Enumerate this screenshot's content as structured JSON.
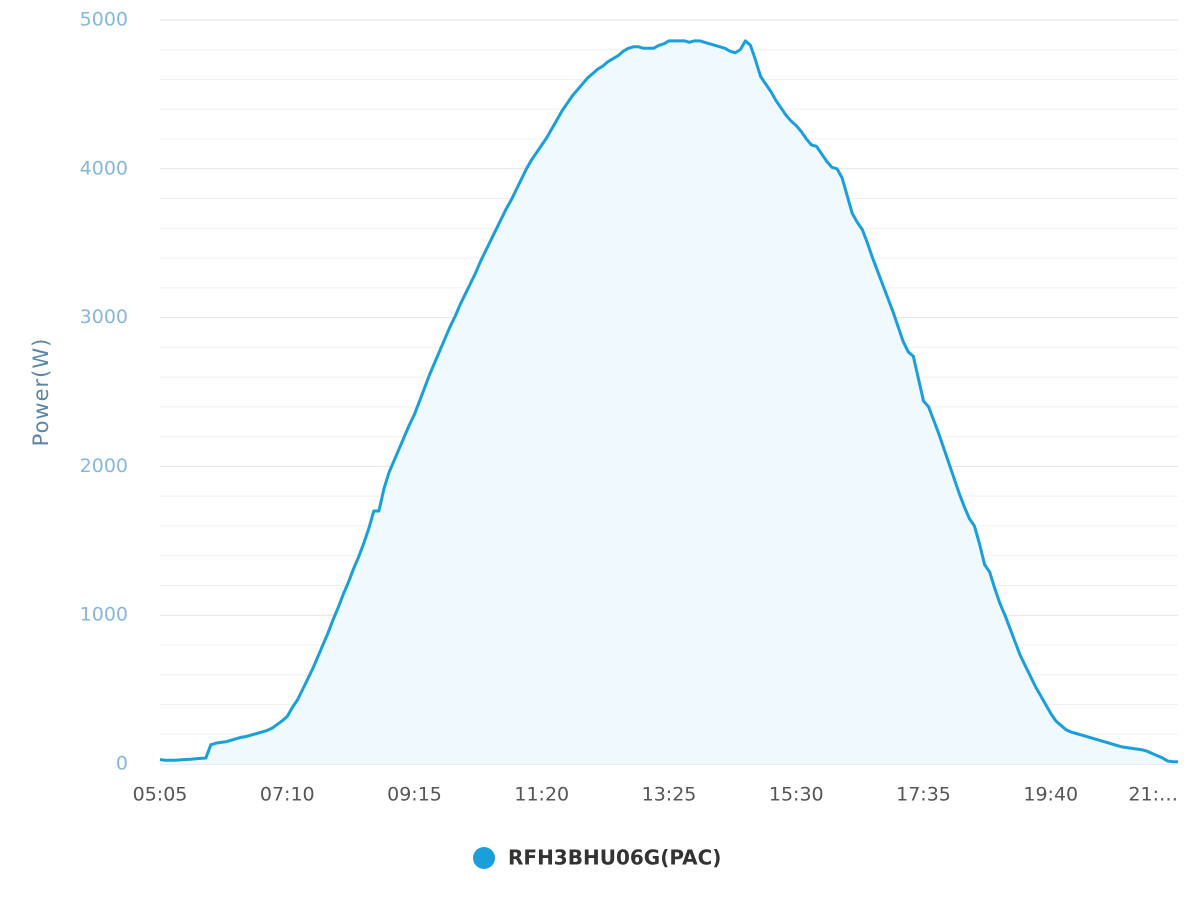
{
  "chart_data": {
    "type": "area",
    "y_label": "Power(W)",
    "categories": [
      "05:05",
      null,
      null,
      null,
      null,
      null,
      null,
      null,
      null,
      null,
      null,
      null,
      null,
      null,
      null,
      null,
      null,
      null,
      null,
      null,
      null,
      null,
      null,
      null,
      null,
      "07:10",
      null,
      null,
      null,
      null,
      null,
      null,
      null,
      null,
      null,
      null,
      null,
      null,
      null,
      null,
      null,
      null,
      null,
      null,
      null,
      null,
      null,
      null,
      null,
      null,
      "09:15",
      null,
      null,
      null,
      null,
      null,
      null,
      null,
      null,
      null,
      null,
      null,
      null,
      null,
      null,
      null,
      null,
      null,
      null,
      null,
      null,
      null,
      null,
      null,
      null,
      "11:20",
      null,
      null,
      null,
      null,
      null,
      null,
      null,
      null,
      null,
      null,
      null,
      null,
      null,
      null,
      null,
      null,
      null,
      null,
      null,
      null,
      null,
      null,
      null,
      null,
      "13:25",
      null,
      null,
      null,
      null,
      null,
      null,
      null,
      null,
      null,
      null,
      null,
      null,
      null,
      null,
      null,
      null,
      null,
      null,
      null,
      null,
      null,
      null,
      null,
      null,
      "15:30",
      null,
      null,
      null,
      null,
      null,
      null,
      null,
      null,
      null,
      null,
      null,
      null,
      null,
      null,
      null,
      null,
      null,
      null,
      null,
      null,
      null,
      null,
      null,
      null,
      "17:35",
      null,
      null,
      null,
      null,
      null,
      null,
      null,
      null,
      null,
      null,
      null,
      null,
      null,
      null,
      null,
      null,
      null,
      null,
      null,
      null,
      null,
      null,
      null,
      null,
      "19:40",
      null,
      null,
      null,
      null,
      null,
      null,
      null,
      null,
      null,
      null,
      null,
      null,
      null,
      null,
      null,
      null,
      null,
      null,
      null,
      null,
      null,
      null,
      null,
      null,
      "21:…"
    ],
    "series": [
      {
        "name": "RFH3BHU06G(PAC)",
        "color": "#1a9fd9",
        "fill": "#f0f9fd",
        "values": [
          30,
          25,
          25,
          25,
          28,
          30,
          32,
          35,
          38,
          40,
          130,
          140,
          145,
          150,
          160,
          170,
          180,
          185,
          195,
          205,
          215,
          225,
          240,
          265,
          290,
          320,
          380,
          430,
          500,
          570,
          640,
          720,
          800,
          880,
          970,
          1050,
          1140,
          1220,
          1310,
          1390,
          1480,
          1580,
          1700,
          1700,
          1850,
          1960,
          2040,
          2120,
          2200,
          2280,
          2350,
          2440,
          2530,
          2620,
          2700,
          2780,
          2860,
          2940,
          3010,
          3090,
          3160,
          3230,
          3300,
          3380,
          3450,
          3520,
          3590,
          3660,
          3730,
          3790,
          3860,
          3930,
          4000,
          4060,
          4110,
          4160,
          4210,
          4270,
          4330,
          4390,
          4440,
          4490,
          4530,
          4570,
          4610,
          4640,
          4670,
          4690,
          4720,
          4740,
          4760,
          4790,
          4810,
          4820,
          4820,
          4810,
          4810,
          4810,
          4830,
          4840,
          4860,
          4860,
          4860,
          4860,
          4850,
          4860,
          4860,
          4850,
          4840,
          4830,
          4820,
          4810,
          4790,
          4780,
          4800,
          4860,
          4830,
          4730,
          4620,
          4570,
          4520,
          4460,
          4410,
          4360,
          4320,
          4290,
          4250,
          4200,
          4160,
          4150,
          4100,
          4050,
          4010,
          4000,
          3940,
          3820,
          3700,
          3640,
          3590,
          3500,
          3400,
          3310,
          3220,
          3130,
          3040,
          2940,
          2840,
          2770,
          2740,
          2590,
          2440,
          2400,
          2310,
          2220,
          2120,
          2020,
          1920,
          1820,
          1730,
          1650,
          1600,
          1480,
          1340,
          1290,
          1180,
          1080,
          1000,
          910,
          820,
          730,
          660,
          590,
          520,
          460,
          400,
          340,
          290,
          260,
          230,
          215,
          205,
          195,
          185,
          175,
          165,
          155,
          145,
          135,
          125,
          115,
          110,
          105,
          100,
          95,
          85,
          70,
          55,
          40,
          20,
          15,
          15
        ]
      }
    ],
    "ylim": [
      0,
      5000
    ],
    "yticks": [
      0,
      1000,
      2000,
      3000,
      4000,
      5000
    ],
    "minor_yticks": [
      200,
      400,
      600,
      800,
      1200,
      1400,
      1600,
      1800,
      2200,
      2400,
      2600,
      2800,
      3200,
      3400,
      3600,
      3800,
      4200,
      4400,
      4600,
      4800
    ],
    "grid": true,
    "legend": "bottom"
  }
}
